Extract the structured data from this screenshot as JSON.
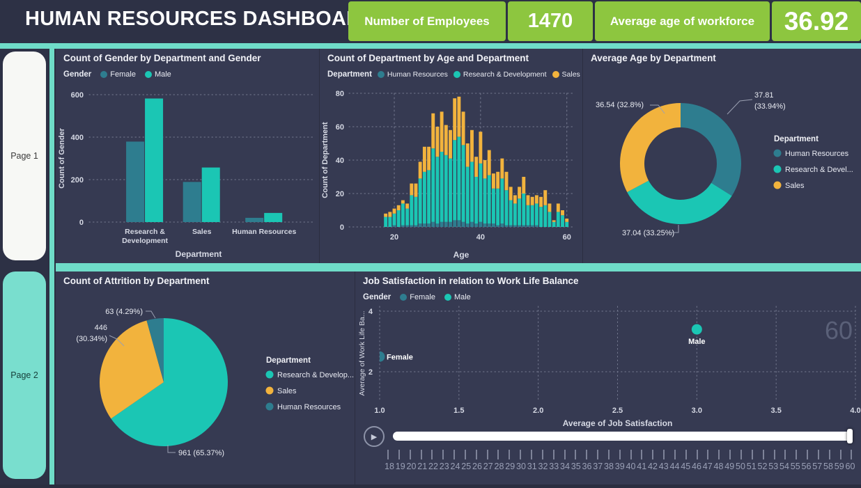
{
  "header": {
    "title": "HUMAN RESOURCES DASHBOARD",
    "kpis": [
      {
        "label": "Number of Employees",
        "value": "1470"
      },
      {
        "label": "Average age of workforce",
        "value": "36.92"
      }
    ]
  },
  "sidebar": {
    "pages": [
      {
        "label": "Page 1"
      },
      {
        "label": "Page 2"
      }
    ]
  },
  "colors": {
    "green": "#8DC63F",
    "accent_teal": "#6FDCC8",
    "teal": "#1BC6B4",
    "dark_teal": "#2E7D8F",
    "orange": "#F2B33D",
    "header_bg": "#2D3145",
    "panel_bg": "#363A52",
    "frame_label_gray": "#5A6078"
  },
  "chart_data": [
    {
      "type": "bar",
      "title": "Count of Gender by Department and Gender",
      "legend_title": "Gender",
      "categories": [
        "Research & Development",
        "Sales",
        "Human Resources"
      ],
      "category_lines": [
        [
          "Research &",
          "Development"
        ],
        [
          "Sales"
        ],
        [
          "Human Resources"
        ]
      ],
      "series": [
        {
          "name": "Female",
          "color": "#2E7D8F",
          "values": [
            379,
            189,
            20
          ]
        },
        {
          "name": "Male",
          "color": "#1BC6B4",
          "values": [
            582,
            257,
            43
          ]
        }
      ],
      "xlabel": "Department",
      "ylabel": "Count of Gender",
      "ylim": [
        0,
        600
      ],
      "yticks": [
        0,
        200,
        400,
        600
      ]
    },
    {
      "type": "stacked-bar",
      "title": "Count of Department by Age and Department",
      "legend_title": "Department",
      "x": [
        18,
        19,
        20,
        21,
        22,
        23,
        24,
        25,
        26,
        27,
        28,
        29,
        30,
        31,
        32,
        33,
        34,
        35,
        36,
        37,
        38,
        39,
        40,
        41,
        42,
        43,
        44,
        45,
        46,
        47,
        48,
        49,
        50,
        51,
        52,
        53,
        54,
        55,
        56,
        57,
        58,
        59,
        60
      ],
      "series": [
        {
          "name": "Human Resources",
          "color": "#2E7D8F",
          "values": [
            0,
            0,
            1,
            0,
            1,
            1,
            1,
            1,
            2,
            2,
            2,
            3,
            2,
            3,
            3,
            3,
            4,
            4,
            3,
            2,
            3,
            2,
            3,
            2,
            2,
            2,
            1,
            2,
            1,
            1,
            1,
            1,
            1,
            1,
            1,
            1,
            0,
            0,
            0,
            0,
            0,
            0,
            0
          ]
        },
        {
          "name": "Research & Development",
          "color": "#1BC6B4",
          "values": [
            6,
            6,
            7,
            10,
            13,
            10,
            18,
            17,
            27,
            31,
            32,
            44,
            40,
            42,
            40,
            38,
            48,
            50,
            46,
            34,
            36,
            28,
            35,
            27,
            29,
            21,
            22,
            27,
            21,
            15,
            13,
            16,
            19,
            12,
            12,
            13,
            12,
            13,
            9,
            3,
            9,
            7,
            3
          ]
        },
        {
          "name": "Sales",
          "color": "#F2B33D",
          "values": [
            2,
            3,
            3,
            3,
            2,
            3,
            7,
            8,
            10,
            15,
            14,
            21,
            18,
            24,
            18,
            17,
            25,
            24,
            20,
            14,
            19,
            12,
            19,
            11,
            15,
            9,
            10,
            12,
            11,
            8,
            5,
            7,
            10,
            6,
            5,
            5,
            6,
            9,
            5,
            1,
            5,
            3,
            2
          ]
        }
      ],
      "xlabel": "Age",
      "ylabel": "Count of Department",
      "ylim": [
        0,
        80
      ],
      "yticks": [
        0,
        20,
        40,
        60,
        80
      ],
      "xticks": [
        20,
        40,
        60
      ]
    },
    {
      "type": "donut",
      "title": "Average Age by Department",
      "legend_title": "Department",
      "slices": [
        {
          "name": "Human Resources",
          "legend_label": "Human Resources",
          "value": 37.81,
          "pct": 33.94,
          "label_lines": [
            "37.81",
            "(33.94%)"
          ],
          "color": "#2E7D8F"
        },
        {
          "name": "Research & Development",
          "legend_label": "Research & Devel...",
          "value": 37.04,
          "pct": 33.25,
          "label_lines": [
            "37.04 (33.25%)"
          ],
          "color": "#1BC6B4"
        },
        {
          "name": "Sales",
          "legend_label": "Sales",
          "value": 36.54,
          "pct": 32.8,
          "label_lines": [
            "36.54 (32.8%)"
          ],
          "color": "#F2B33D"
        }
      ]
    },
    {
      "type": "pie",
      "title": "Count of Attrition by Department",
      "legend_title": "Department",
      "slices": [
        {
          "name": "Research & Development",
          "legend_label": "Research & Develop...",
          "value": 961,
          "pct": 65.37,
          "label_lines": [
            "961 (65.37%)"
          ],
          "color": "#1BC6B4"
        },
        {
          "name": "Sales",
          "legend_label": "Sales",
          "value": 446,
          "pct": 30.34,
          "label_lines": [
            "446",
            "(30.34%)"
          ],
          "color": "#F2B33D"
        },
        {
          "name": "Human Resources",
          "legend_label": "Human Resources",
          "value": 63,
          "pct": 4.29,
          "label_lines": [
            "63 (4.29%)"
          ],
          "color": "#2E7D8F"
        }
      ]
    },
    {
      "type": "scatter",
      "title": "Job Satisfaction in relation to Work Life Balance",
      "legend_title": "Gender",
      "points": [
        {
          "name": "Female",
          "x": 1.0,
          "y": 2.5,
          "color": "#2E7D8F"
        },
        {
          "name": "Male",
          "x": 3.0,
          "y": 3.4,
          "color": "#1BC6B4"
        }
      ],
      "xlabel": "Average of Job Satisfaction",
      "ylabel": "Average of Work Life Ba...",
      "xlim": [
        1,
        4
      ],
      "xticks": [
        "1.0",
        "1.5",
        "2.0",
        "2.5",
        "3.0",
        "3.5",
        "4.0"
      ],
      "ylim": [
        1,
        4.2
      ],
      "yticks": [
        2,
        4
      ],
      "frame_label": "60"
    }
  ],
  "player": {
    "ages": [
      "18",
      "19",
      "20",
      "21",
      "22",
      "23",
      "24",
      "25",
      "26",
      "27",
      "28",
      "29",
      "30",
      "31",
      "32",
      "33",
      "34",
      "35",
      "36",
      "37",
      "38",
      "39",
      "40",
      "41",
      "42",
      "43",
      "44",
      "45",
      "46",
      "47",
      "48",
      "49",
      "50",
      "51",
      "52",
      "53",
      "54",
      "55",
      "56",
      "57",
      "58",
      "59",
      "60"
    ]
  }
}
